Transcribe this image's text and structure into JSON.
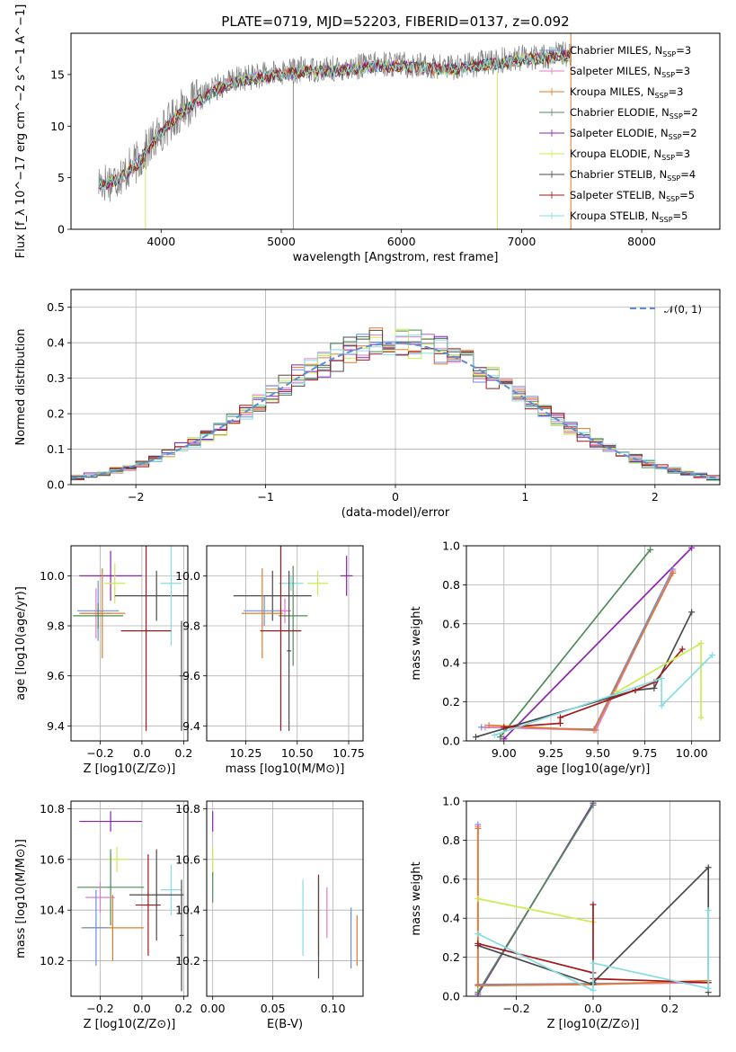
{
  "colors": {
    "Chabrier MILES": "#6b8fd6",
    "Salpeter MILES": "#e07cc4",
    "Kroupa MILES": "#e07b28",
    "Chabrier ELODIE": "#4f8a58",
    "Salpeter ELODIE": "#8c22b0",
    "Kroupa ELODIE": "#c9ec50",
    "Chabrier STELIB": "#4a4a4a",
    "Salpeter STELIB": "#a01818",
    "Kroupa STELIB": "#86dde0"
  },
  "chart_data": [
    {
      "id": "spectrum",
      "type": "line",
      "title": "PLATE=0719, MJD=52203, FIBERID=0137, z=0.092",
      "xlabel": "wavelength [Angstrom, rest frame]",
      "ylabel": "Flux [f_λ 10^−17 erg cm^−2 s^−1 A^−1]",
      "xlim": [
        3250,
        8650
      ],
      "ylim": [
        0,
        19
      ],
      "xticks": [
        4000,
        5000,
        6000,
        7000,
        8000
      ],
      "yticks": [
        0,
        5,
        10,
        15
      ],
      "legend_position": "right",
      "legend": [
        {
          "name": "Chabrier MILES",
          "nssp": "3"
        },
        {
          "name": "Salpeter MILES",
          "nssp": "3"
        },
        {
          "name": "Kroupa MILES",
          "nssp": "3"
        },
        {
          "name": "Chabrier ELODIE",
          "nssp": "2"
        },
        {
          "name": "Salpeter ELODIE",
          "nssp": "2"
        },
        {
          "name": "Kroupa ELODIE",
          "nssp": "3"
        },
        {
          "name": "Chabrier STELIB",
          "nssp": "4"
        },
        {
          "name": "Salpeter STELIB",
          "nssp": "5"
        },
        {
          "name": "Kroupa STELIB",
          "nssp": "5"
        }
      ],
      "data_envelope": {
        "x": [
          3500,
          3600,
          3700,
          3800,
          3900,
          4000,
          4100,
          4200,
          4300,
          4400,
          4500,
          4600,
          4700,
          4800,
          4900,
          5000,
          5200,
          5400,
          5600,
          5800,
          6000,
          6200,
          6400,
          6600,
          6800,
          7000,
          7200,
          7400
        ],
        "y": [
          4.5,
          4.8,
          5.5,
          6.5,
          8.0,
          9.5,
          10.8,
          11.8,
          12.5,
          13.3,
          14.0,
          14.4,
          14.7,
          14.9,
          15.0,
          15.2,
          15.5,
          15.5,
          15.7,
          16.0,
          16.0,
          15.8,
          15.7,
          16.0,
          16.3,
          16.6,
          16.8,
          17.0
        ]
      }
    },
    {
      "id": "residuals",
      "type": "line",
      "xlabel": "(data-model)/error",
      "ylabel": "Normed distribution",
      "xlim": [
        -2.5,
        2.5
      ],
      "ylim": [
        0,
        0.55
      ],
      "xticks": [
        -2,
        -1,
        0,
        1,
        2
      ],
      "yticks": [
        0.0,
        0.1,
        0.2,
        0.3,
        0.4,
        0.5
      ],
      "bin_width": 0.1,
      "grid": true,
      "legend_position": "top-right",
      "reference_label": "𝒩(0, 1)"
    },
    {
      "id": "age-vs-Z",
      "type": "scatter",
      "xlabel": "Z [log10(Z/Z⊙)]",
      "ylabel": "age  [log10(age/yr)]",
      "xlim": [
        -0.34,
        0.22
      ],
      "ylim": [
        9.34,
        10.12
      ],
      "xticks": [
        -0.2,
        0.0,
        0.2
      ],
      "yticks": [
        9.4,
        9.6,
        9.8,
        10.0
      ],
      "grid": true,
      "points": [
        {
          "model": "Salpeter ELODIE",
          "x": -0.15,
          "xerr": 0.15,
          "y": 10.0,
          "yerr": 0.1
        },
        {
          "model": "Kroupa ELODIE",
          "x": -0.13,
          "xerr": 0.05,
          "y": 9.97,
          "yerr": 0.08
        },
        {
          "model": "Chabrier STELIB",
          "x": 0.07,
          "xerr": 0.2,
          "y": 9.92,
          "yerr": 0.1
        },
        {
          "model": "Kroupa STELIB",
          "x": 0.14,
          "xerr": 0.05,
          "y": 9.97,
          "yerr": 0.25
        },
        {
          "model": "Chabrier MILES",
          "x": -0.21,
          "xerr": 0.1,
          "y": 9.86,
          "yerr": 0.12
        },
        {
          "model": "Salpeter MILES",
          "x": -0.22,
          "xerr": 0.07,
          "y": 9.85,
          "yerr": 0.1
        },
        {
          "model": "Kroupa MILES",
          "x": -0.19,
          "xerr": 0.11,
          "y": 9.85,
          "yerr": 0.18
        },
        {
          "model": "Chabrier ELODIE",
          "x": -0.21,
          "xerr": 0.12,
          "y": 9.84,
          "yerr": 0.05
        },
        {
          "model": "Salpeter STELIB",
          "x": 0.02,
          "xerr": 0.12,
          "y": 9.78,
          "yerr": 0.4
        },
        {
          "model": "Chabrier STELIB",
          "x": 0.19,
          "xerr": 0.01,
          "y": 9.6,
          "yerr": 0.22
        }
      ]
    },
    {
      "id": "age-vs-mass",
      "type": "scatter",
      "xlabel": "mass [log10(M/M⊙)]",
      "xlim": [
        10.06,
        10.82
      ],
      "ylim": [
        9.34,
        10.12
      ],
      "xticks": [
        10.25,
        10.5,
        10.75
      ],
      "yticks": [
        9.4,
        9.6,
        9.8,
        10.0
      ],
      "grid": true,
      "points": [
        {
          "model": "Salpeter ELODIE",
          "x": 10.74,
          "xerr": 0.03,
          "y": 10.0,
          "yerr": 0.08
        },
        {
          "model": "Kroupa ELODIE",
          "x": 10.6,
          "xerr": 0.05,
          "y": 9.97,
          "yerr": 0.05
        },
        {
          "model": "Kroupa STELIB",
          "x": 10.47,
          "xerr": 0.06,
          "y": 9.97,
          "yerr": 0.03
        },
        {
          "model": "Chabrier STELIB",
          "x": 10.38,
          "xerr": 0.19,
          "y": 9.92,
          "yerr": 0.1
        },
        {
          "model": "Chabrier MILES",
          "x": 10.34,
          "xerr": 0.1,
          "y": 9.86,
          "yerr": 0.06
        },
        {
          "model": "Salpeter MILES",
          "x": 10.44,
          "xerr": 0.03,
          "y": 9.86,
          "yerr": 0.05
        },
        {
          "model": "Kroupa MILES",
          "x": 10.33,
          "xerr": 0.1,
          "y": 9.85,
          "yerr": 0.18
        },
        {
          "model": "Chabrier ELODIE",
          "x": 10.48,
          "xerr": 0.07,
          "y": 9.84,
          "yerr": 0.2
        },
        {
          "model": "Salpeter STELIB",
          "x": 10.42,
          "xerr": 0.1,
          "y": 9.78,
          "yerr": 0.4
        },
        {
          "model": "Chabrier STELIB",
          "x": 10.46,
          "xerr": 0.01,
          "y": 9.7,
          "yerr": 0.32
        }
      ]
    },
    {
      "id": "massweight-vs-age",
      "type": "line",
      "xlabel": "age  [log10(age/yr)]",
      "ylabel": "mass weight",
      "xlim": [
        8.8,
        10.15
      ],
      "ylim": [
        0,
        1
      ],
      "xticks": [
        9.0,
        9.25,
        9.5,
        9.75,
        10.0
      ],
      "yticks": [
        0.0,
        0.2,
        0.4,
        0.6,
        0.8,
        1.0
      ],
      "grid": true,
      "series": [
        {
          "model": "Chabrier ELODIE",
          "x": [
            8.98,
            9.78
          ],
          "y": [
            0.02,
            0.98
          ]
        },
        {
          "model": "Salpeter ELODIE",
          "x": [
            9.0,
            10.0
          ],
          "y": [
            0.01,
            0.99
          ]
        },
        {
          "model": "Chabrier MILES",
          "x": [
            8.88,
            9.48,
            9.9
          ],
          "y": [
            0.07,
            0.06,
            0.88
          ]
        },
        {
          "model": "Salpeter MILES",
          "x": [
            8.9,
            9.49,
            9.9
          ],
          "y": [
            0.07,
            0.055,
            0.87
          ]
        },
        {
          "model": "Kroupa MILES",
          "x": [
            8.92,
            9.48,
            9.9
          ],
          "y": [
            0.08,
            0.055,
            0.86
          ]
        },
        {
          "model": "Chabrier STELIB",
          "x": [
            8.85,
            9.7,
            9.8,
            10.0
          ],
          "y": [
            0.02,
            0.26,
            0.27,
            0.66
          ]
        },
        {
          "model": "Salpeter STELIB",
          "x": [
            9.0,
            9.3,
            9.3,
            9.7,
            9.8,
            9.95
          ],
          "y": [
            0.07,
            0.09,
            0.12,
            0.26,
            0.3,
            0.47
          ]
        },
        {
          "model": "Kroupa ELODIE",
          "x": [
            9.6,
            10.05,
            10.05
          ],
          "y": [
            0.25,
            0.5,
            0.12
          ]
        },
        {
          "model": "Kroupa STELIB",
          "x": [
            8.95,
            9.84,
            9.84,
            10.11
          ],
          "y": [
            0.03,
            0.32,
            0.18,
            0.44
          ]
        }
      ]
    },
    {
      "id": "mass-vs-Z",
      "type": "scatter",
      "xlabel": "Z [log10(Z/Z⊙)]",
      "ylabel": "mass [log10(M/M⊙)]",
      "xlim": [
        -0.34,
        0.22
      ],
      "ylim": [
        10.06,
        10.83
      ],
      "xticks": [
        -0.2,
        0.0,
        0.2
      ],
      "yticks": [
        10.2,
        10.4,
        10.6,
        10.8
      ],
      "grid": true,
      "points": [
        {
          "model": "Salpeter ELODIE",
          "x": -0.15,
          "xerr": 0.15,
          "y": 10.75,
          "yerr": 0.04
        },
        {
          "model": "Kroupa ELODIE",
          "x": -0.12,
          "xerr": 0.05,
          "y": 10.6,
          "yerr": 0.05
        },
        {
          "model": "Kroupa STELIB",
          "x": 0.14,
          "xerr": 0.05,
          "y": 10.48,
          "yerr": 0.1
        },
        {
          "model": "Chabrier ELODIE",
          "x": -0.15,
          "xerr": 0.16,
          "y": 10.49,
          "yerr": 0.15
        },
        {
          "model": "Chabrier STELIB",
          "x": 0.07,
          "xerr": 0.13,
          "y": 10.46,
          "yerr": 0.18
        },
        {
          "model": "Salpeter MILES",
          "x": -0.2,
          "xerr": 0.07,
          "y": 10.45,
          "yerr": 0.06
        },
        {
          "model": "Salpeter STELIB",
          "x": 0.03,
          "xerr": 0.06,
          "y": 10.42,
          "yerr": 0.2
        },
        {
          "model": "Kroupa MILES",
          "x": -0.14,
          "xerr": 0.15,
          "y": 10.33,
          "yerr": 0.13
        },
        {
          "model": "Chabrier MILES",
          "x": -0.22,
          "xerr": 0.06,
          "y": 10.33,
          "yerr": 0.15
        },
        {
          "model": "Chabrier STELIB",
          "x": 0.19,
          "xerr": 0.01,
          "y": 10.3,
          "yerr": 0.22
        }
      ]
    },
    {
      "id": "mass-vs-EBV",
      "type": "scatter",
      "xlabel": "E(B-V)",
      "xlim": [
        -0.005,
        0.125
      ],
      "ylim": [
        10.06,
        10.83
      ],
      "xticks": [
        0.0,
        0.05,
        0.1
      ],
      "yticks": [
        10.2,
        10.4,
        10.6,
        10.8
      ],
      "grid": true,
      "points": [
        {
          "model": "Salpeter ELODIE",
          "x": 0.0,
          "xerr": 0.0,
          "y": 10.75,
          "yerr": 0.04
        },
        {
          "model": "Kroupa ELODIE",
          "x": 0.0,
          "xerr": 0.0,
          "y": 10.6,
          "yerr": 0.05
        },
        {
          "model": "Chabrier ELODIE",
          "x": 0.0,
          "xerr": 0.0,
          "y": 10.49,
          "yerr": 0.06
        },
        {
          "model": "Kroupa STELIB",
          "x": 0.075,
          "xerr": 0.0,
          "y": 10.37,
          "yerr": 0.15
        },
        {
          "model": "Salpeter STELIB",
          "x": 0.088,
          "xerr": 0.0,
          "y": 10.38,
          "yerr": 0.16
        },
        {
          "model": "Chabrier STELIB",
          "x": 0.088,
          "xerr": 0.0,
          "y": 10.33,
          "yerr": 0.2
        },
        {
          "model": "Salpeter MILES",
          "x": 0.095,
          "xerr": 0.0,
          "y": 10.39,
          "yerr": 0.1
        },
        {
          "model": "Chabrier MILES",
          "x": 0.115,
          "xerr": 0.0,
          "y": 10.29,
          "yerr": 0.12
        },
        {
          "model": "Kroupa MILES",
          "x": 0.12,
          "xerr": 0.0,
          "y": 10.28,
          "yerr": 0.1
        }
      ]
    },
    {
      "id": "massweight-vs-Z",
      "type": "line",
      "xlabel": "Z [log10(Z/Z⊙)]",
      "ylabel": "mass weight",
      "xlim": [
        -0.33,
        0.33
      ],
      "ylim": [
        0,
        1
      ],
      "xticks": [
        -0.2,
        0.0,
        0.2
      ],
      "yticks": [
        0.0,
        0.2,
        0.4,
        0.6,
        0.8,
        1.0
      ],
      "grid": true,
      "series": [
        {
          "model": "Salpeter ELODIE",
          "x": [
            -0.3,
            0.0
          ],
          "y": [
            0.01,
            0.99
          ]
        },
        {
          "model": "Chabrier ELODIE",
          "x": [
            -0.3,
            0.0
          ],
          "y": [
            0.02,
            0.98
          ]
        },
        {
          "model": "Chabrier MILES",
          "x": [
            -0.3,
            -0.3,
            0.3
          ],
          "y": [
            0.88,
            0.06,
            0.07
          ]
        },
        {
          "model": "Salpeter MILES",
          "x": [
            -0.3,
            -0.3,
            0.3
          ],
          "y": [
            0.87,
            0.055,
            0.07
          ]
        },
        {
          "model": "Kroupa MILES",
          "x": [
            -0.3,
            -0.3,
            0.0,
            0.3
          ],
          "y": [
            0.86,
            0.055,
            0.06,
            0.08
          ]
        },
        {
          "model": "Kroupa ELODIE",
          "x": [
            -0.3,
            0.0
          ],
          "y": [
            0.5,
            0.38
          ]
        },
        {
          "model": "Chabrier STELIB",
          "x": [
            -0.3,
            0.0,
            0.0,
            0.3,
            0.3
          ],
          "y": [
            0.26,
            0.06,
            0.07,
            0.66,
            0.02
          ]
        },
        {
          "model": "Salpeter STELIB",
          "x": [
            -0.3,
            0.0,
            0.0,
            0.0,
            0.3
          ],
          "y": [
            0.27,
            0.12,
            0.47,
            0.09,
            0.07
          ]
        },
        {
          "model": "Kroupa STELIB",
          "x": [
            -0.3,
            0.0,
            0.0,
            0.3,
            0.3
          ],
          "y": [
            0.32,
            0.03,
            0.17,
            0.04,
            0.44
          ]
        }
      ]
    }
  ]
}
